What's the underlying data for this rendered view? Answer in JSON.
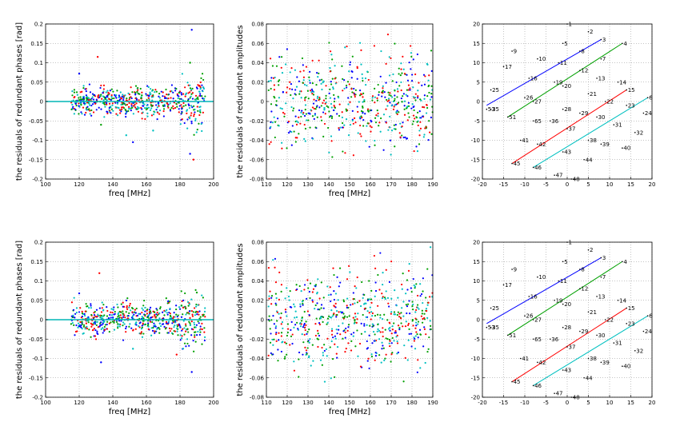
{
  "chart_data": [
    {
      "type": "scatter",
      "panel": "phase-residuals-top",
      "xlabel": "freq [MHz]",
      "ylabel": "the residuals of redundant phases [rad]",
      "xlim": [
        100,
        200
      ],
      "ylim": [
        -0.2,
        0.2
      ],
      "xticks": [
        100,
        120,
        140,
        160,
        180,
        200
      ],
      "xtick_labels": [
        "100",
        "120",
        "140",
        "160",
        "180",
        "200"
      ],
      "yticks": [
        -0.2,
        -0.15,
        -0.1,
        -0.05,
        0,
        0.05,
        0.1,
        0.15,
        0.2
      ],
      "ytick_labels": [
        "-0.2",
        "-0.15",
        "-0.1",
        "-0.05",
        "0",
        "0.05",
        "0.1",
        "0.15",
        "0.2"
      ],
      "grid": true,
      "reference_line": {
        "y": 0,
        "color": "#00b5b5"
      },
      "series_colors": [
        "#0000ff",
        "#00a000",
        "#ff0000",
        "#00c0c0"
      ],
      "x_range_of_points": [
        115,
        195
      ],
      "spread": 0.022,
      "outliers": [
        {
          "x": 131,
          "y": 0.115,
          "color": "#ff0000"
        },
        {
          "x": 120,
          "y": 0.072,
          "color": "#0000ff"
        },
        {
          "x": 187,
          "y": 0.185,
          "color": "#0000ff"
        },
        {
          "x": 186,
          "y": -0.135,
          "color": "#0000ff"
        },
        {
          "x": 188,
          "y": -0.15,
          "color": "#ff0000"
        },
        {
          "x": 148,
          "y": -0.087,
          "color": "#00c0c0"
        },
        {
          "x": 133,
          "y": -0.06,
          "color": "#00a000"
        },
        {
          "x": 152,
          "y": -0.105,
          "color": "#0000ff"
        },
        {
          "x": 186,
          "y": 0.1,
          "color": "#00a000"
        },
        {
          "x": 164,
          "y": -0.075,
          "color": "#00c0c0"
        }
      ]
    },
    {
      "type": "scatter",
      "panel": "amplitude-residuals-top",
      "xlabel": "freq [MHz]",
      "ylabel": "the residuals of redundant amplitudes",
      "xlim": [
        110,
        190
      ],
      "ylim": [
        -0.08,
        0.08
      ],
      "xticks": [
        110,
        120,
        130,
        140,
        150,
        160,
        170,
        180,
        190
      ],
      "xtick_labels": [
        "110",
        "120",
        "130",
        "140",
        "150",
        "160",
        "170",
        "180",
        "190"
      ],
      "yticks": [
        -0.08,
        -0.06,
        -0.04,
        -0.02,
        0,
        0.02,
        0.04,
        0.06,
        0.08
      ],
      "ytick_labels": [
        "-0.08",
        "-0.06",
        "-0.04",
        "-0.02",
        "0",
        "0.02",
        "0.04",
        "0.06",
        "0.08"
      ],
      "grid": true,
      "series_colors": [
        "#0000ff",
        "#00a000",
        "#ff0000",
        "#00c0c0"
      ],
      "x_range_of_points": [
        111,
        190
      ],
      "spread": 0.03
    },
    {
      "type": "scatter",
      "panel": "antenna-layout-top",
      "xlim": [
        -20,
        20
      ],
      "ylim": [
        -20,
        20
      ],
      "xticks": [
        -20,
        -15,
        -10,
        -5,
        0,
        5,
        10,
        15,
        20
      ],
      "xtick_labels": [
        "-20",
        "-15",
        "-10",
        "-5",
        "0",
        "5",
        "10",
        "15",
        "20"
      ],
      "yticks": [
        -20,
        -15,
        -10,
        -5,
        0,
        5,
        10,
        15,
        20
      ],
      "ytick_labels": [
        "-20",
        "-15",
        "-10",
        "-5",
        "0",
        "5",
        "10",
        "15",
        "20"
      ],
      "grid": true,
      "antennas": [
        {
          "label": "1",
          "x": 0,
          "y": 20
        },
        {
          "label": "2",
          "x": 5,
          "y": 18
        },
        {
          "label": "3",
          "x": 8,
          "y": 16
        },
        {
          "label": "4",
          "x": 13,
          "y": 15
        },
        {
          "label": "5",
          "x": -1,
          "y": 15
        },
        {
          "label": "6",
          "x": 19,
          "y": 1
        },
        {
          "label": "7",
          "x": 8,
          "y": 11
        },
        {
          "label": "8",
          "x": 3,
          "y": 13
        },
        {
          "label": "9",
          "x": -13,
          "y": 13
        },
        {
          "label": "10",
          "x": -7,
          "y": 11
        },
        {
          "label": "11",
          "x": -2,
          "y": 10
        },
        {
          "label": "12",
          "x": 3,
          "y": 8
        },
        {
          "label": "13",
          "x": 7,
          "y": 6
        },
        {
          "label": "14",
          "x": 12,
          "y": 5
        },
        {
          "label": "15",
          "x": 14,
          "y": 3
        },
        {
          "label": "16",
          "x": -9,
          "y": 6
        },
        {
          "label": "17",
          "x": -15,
          "y": 9
        },
        {
          "label": "19",
          "x": -3,
          "y": 5
        },
        {
          "label": "20",
          "x": -1,
          "y": 4
        },
        {
          "label": "21",
          "x": 5,
          "y": 2
        },
        {
          "label": "22",
          "x": 9,
          "y": 0
        },
        {
          "label": "23",
          "x": 14,
          "y": -1
        },
        {
          "label": "24",
          "x": 18,
          "y": -3
        },
        {
          "label": "25",
          "x": -18,
          "y": 3
        },
        {
          "label": "26",
          "x": -10,
          "y": 1
        },
        {
          "label": "27",
          "x": -8,
          "y": 0
        },
        {
          "label": "28",
          "x": -1,
          "y": -2
        },
        {
          "label": "29",
          "x": 3,
          "y": -3
        },
        {
          "label": "30",
          "x": 7,
          "y": -4
        },
        {
          "label": "31",
          "x": 11,
          "y": -6
        },
        {
          "label": "32",
          "x": 16,
          "y": -8
        },
        {
          "label": "35",
          "x": -18,
          "y": -2
        },
        {
          "label": "36",
          "x": -4,
          "y": -5
        },
        {
          "label": "37",
          "x": 0,
          "y": -7
        },
        {
          "label": "38",
          "x": 5,
          "y": -10
        },
        {
          "label": "39",
          "x": 8,
          "y": -11
        },
        {
          "label": "40",
          "x": 13,
          "y": -12
        },
        {
          "label": "41",
          "x": -11,
          "y": -10
        },
        {
          "label": "42",
          "x": -7,
          "y": -11
        },
        {
          "label": "43",
          "x": -1,
          "y": -13
        },
        {
          "label": "44",
          "x": 4,
          "y": -15
        },
        {
          "label": "45",
          "x": -13,
          "y": -16
        },
        {
          "label": "46",
          "x": -8,
          "y": -17
        },
        {
          "label": "47",
          "x": -3,
          "y": -19
        },
        {
          "label": "48",
          "x": 1,
          "y": -20
        },
        {
          "label": "51",
          "x": -14,
          "y": -4
        },
        {
          "label": "53",
          "x": -19,
          "y": -2
        },
        {
          "label": "65",
          "x": -8,
          "y": -5
        }
      ],
      "baselines": [
        {
          "color": "#0000ff",
          "from": [
            -19,
            -1
          ],
          "to": [
            8,
            16
          ]
        },
        {
          "color": "#00a000",
          "from": [
            -14,
            -4
          ],
          "to": [
            13,
            15
          ]
        },
        {
          "color": "#ff0000",
          "from": [
            -13,
            -16
          ],
          "to": [
            14,
            3
          ]
        },
        {
          "color": "#00c0c0",
          "from": [
            -8,
            -17
          ],
          "to": [
            19,
            1
          ]
        }
      ]
    },
    {
      "type": "scatter",
      "panel": "phase-residuals-bottom",
      "xlabel": "freq [MHz]",
      "ylabel": "the residuals of redundant phases [rad]",
      "xlim": [
        100,
        200
      ],
      "ylim": [
        -0.2,
        0.2
      ],
      "xticks": [
        100,
        120,
        140,
        160,
        180,
        200
      ],
      "xtick_labels": [
        "100",
        "120",
        "140",
        "160",
        "180",
        "200"
      ],
      "yticks": [
        -0.2,
        -0.15,
        -0.1,
        -0.05,
        0,
        0.05,
        0.1,
        0.15,
        0.2
      ],
      "ytick_labels": [
        "-0.2",
        "-0.15",
        "-0.1",
        "-0.05",
        "0",
        "0.05",
        "0.1",
        "0.15",
        "0.2"
      ],
      "grid": true,
      "reference_line": {
        "y": 0,
        "color": "#00b5b5"
      },
      "series_colors": [
        "#0000ff",
        "#00a000",
        "#ff0000",
        "#00c0c0"
      ],
      "x_range_of_points": [
        115,
        195
      ],
      "spread": 0.025,
      "outliers": [
        {
          "x": 132,
          "y": 0.12,
          "color": "#ff0000"
        },
        {
          "x": 120,
          "y": 0.068,
          "color": "#0000ff"
        },
        {
          "x": 187,
          "y": -0.135,
          "color": "#0000ff"
        },
        {
          "x": 133,
          "y": -0.11,
          "color": "#0000ff"
        },
        {
          "x": 152,
          "y": -0.075,
          "color": "#00c0c0"
        },
        {
          "x": 190,
          "y": 0.07,
          "color": "#00a000"
        },
        {
          "x": 178,
          "y": -0.09,
          "color": "#ff0000"
        }
      ]
    },
    {
      "type": "scatter",
      "panel": "amplitude-residuals-bottom",
      "xlabel": "freq [MHz]",
      "ylabel": "the residuals of redundant amplitudes",
      "xlim": [
        110,
        190
      ],
      "ylim": [
        -0.08,
        0.08
      ],
      "xticks": [
        110,
        120,
        130,
        140,
        150,
        160,
        170,
        180,
        190
      ],
      "xtick_labels": [
        "110",
        "120",
        "130",
        "140",
        "150",
        "160",
        "170",
        "180",
        "190"
      ],
      "yticks": [
        -0.08,
        -0.06,
        -0.04,
        -0.02,
        0,
        0.02,
        0.04,
        0.06,
        0.08
      ],
      "ytick_labels": [
        "-0.08",
        "-0.06",
        "-0.04",
        "-0.02",
        "0",
        "0.02",
        "0.04",
        "0.06",
        "0.08"
      ],
      "grid": true,
      "series_colors": [
        "#0000ff",
        "#00a000",
        "#ff0000",
        "#00c0c0"
      ],
      "x_range_of_points": [
        111,
        190
      ],
      "spread": 0.032
    },
    {
      "type": "scatter",
      "panel": "antenna-layout-bottom",
      "xlim": [
        -20,
        20
      ],
      "ylim": [
        -20,
        20
      ],
      "xticks": [
        -20,
        -15,
        -10,
        -5,
        0,
        5,
        10,
        15,
        20
      ],
      "xtick_labels": [
        "-20",
        "-15",
        "-10",
        "-5",
        "0",
        "5",
        "10",
        "15",
        "20"
      ],
      "yticks": [
        -20,
        -15,
        -10,
        -5,
        0,
        5,
        10,
        15,
        20
      ],
      "ytick_labels": [
        "-20",
        "-15",
        "-10",
        "-5",
        "0",
        "5",
        "10",
        "15",
        "20"
      ],
      "grid": true,
      "antennas": [
        {
          "label": "1",
          "x": 0,
          "y": 20
        },
        {
          "label": "2",
          "x": 5,
          "y": 18
        },
        {
          "label": "3",
          "x": 8,
          "y": 16
        },
        {
          "label": "4",
          "x": 13,
          "y": 15
        },
        {
          "label": "5",
          "x": -1,
          "y": 15
        },
        {
          "label": "6",
          "x": 19,
          "y": 1
        },
        {
          "label": "7",
          "x": 8,
          "y": 11
        },
        {
          "label": "8",
          "x": 3,
          "y": 13
        },
        {
          "label": "9",
          "x": -13,
          "y": 13
        },
        {
          "label": "10",
          "x": -7,
          "y": 11
        },
        {
          "label": "11",
          "x": -2,
          "y": 10
        },
        {
          "label": "12",
          "x": 3,
          "y": 8
        },
        {
          "label": "13",
          "x": 7,
          "y": 6
        },
        {
          "label": "14",
          "x": 12,
          "y": 5
        },
        {
          "label": "15",
          "x": 14,
          "y": 3
        },
        {
          "label": "16",
          "x": -9,
          "y": 6
        },
        {
          "label": "17",
          "x": -15,
          "y": 9
        },
        {
          "label": "19",
          "x": -3,
          "y": 5
        },
        {
          "label": "20",
          "x": -1,
          "y": 4
        },
        {
          "label": "21",
          "x": 5,
          "y": 2
        },
        {
          "label": "22",
          "x": 9,
          "y": 0
        },
        {
          "label": "23",
          "x": 14,
          "y": -1
        },
        {
          "label": "24",
          "x": 18,
          "y": -3
        },
        {
          "label": "25",
          "x": -18,
          "y": 3
        },
        {
          "label": "26",
          "x": -10,
          "y": 1
        },
        {
          "label": "27",
          "x": -8,
          "y": 0
        },
        {
          "label": "28",
          "x": -1,
          "y": -2
        },
        {
          "label": "29",
          "x": 3,
          "y": -3
        },
        {
          "label": "30",
          "x": 7,
          "y": -4
        },
        {
          "label": "31",
          "x": 11,
          "y": -6
        },
        {
          "label": "32",
          "x": 16,
          "y": -8
        },
        {
          "label": "35",
          "x": -18,
          "y": -2
        },
        {
          "label": "36",
          "x": -4,
          "y": -5
        },
        {
          "label": "37",
          "x": 0,
          "y": -7
        },
        {
          "label": "38",
          "x": 5,
          "y": -10
        },
        {
          "label": "39",
          "x": 8,
          "y": -11
        },
        {
          "label": "40",
          "x": 13,
          "y": -12
        },
        {
          "label": "41",
          "x": -11,
          "y": -10
        },
        {
          "label": "42",
          "x": -7,
          "y": -11
        },
        {
          "label": "43",
          "x": -1,
          "y": -13
        },
        {
          "label": "44",
          "x": 4,
          "y": -15
        },
        {
          "label": "45",
          "x": -13,
          "y": -16
        },
        {
          "label": "46",
          "x": -8,
          "y": -17
        },
        {
          "label": "47",
          "x": -3,
          "y": -19
        },
        {
          "label": "48",
          "x": 1,
          "y": -20
        },
        {
          "label": "51",
          "x": -14,
          "y": -4
        },
        {
          "label": "53",
          "x": -19,
          "y": -2
        },
        {
          "label": "65",
          "x": -8,
          "y": -5
        }
      ],
      "baselines": [
        {
          "color": "#0000ff",
          "from": [
            -19,
            -1
          ],
          "to": [
            8,
            16
          ]
        },
        {
          "color": "#00a000",
          "from": [
            -14,
            -4
          ],
          "to": [
            13,
            15
          ]
        },
        {
          "color": "#ff0000",
          "from": [
            -13,
            -16
          ],
          "to": [
            14,
            3
          ]
        },
        {
          "color": "#00c0c0",
          "from": [
            -8,
            -17
          ],
          "to": [
            19,
            1
          ]
        }
      ]
    }
  ]
}
